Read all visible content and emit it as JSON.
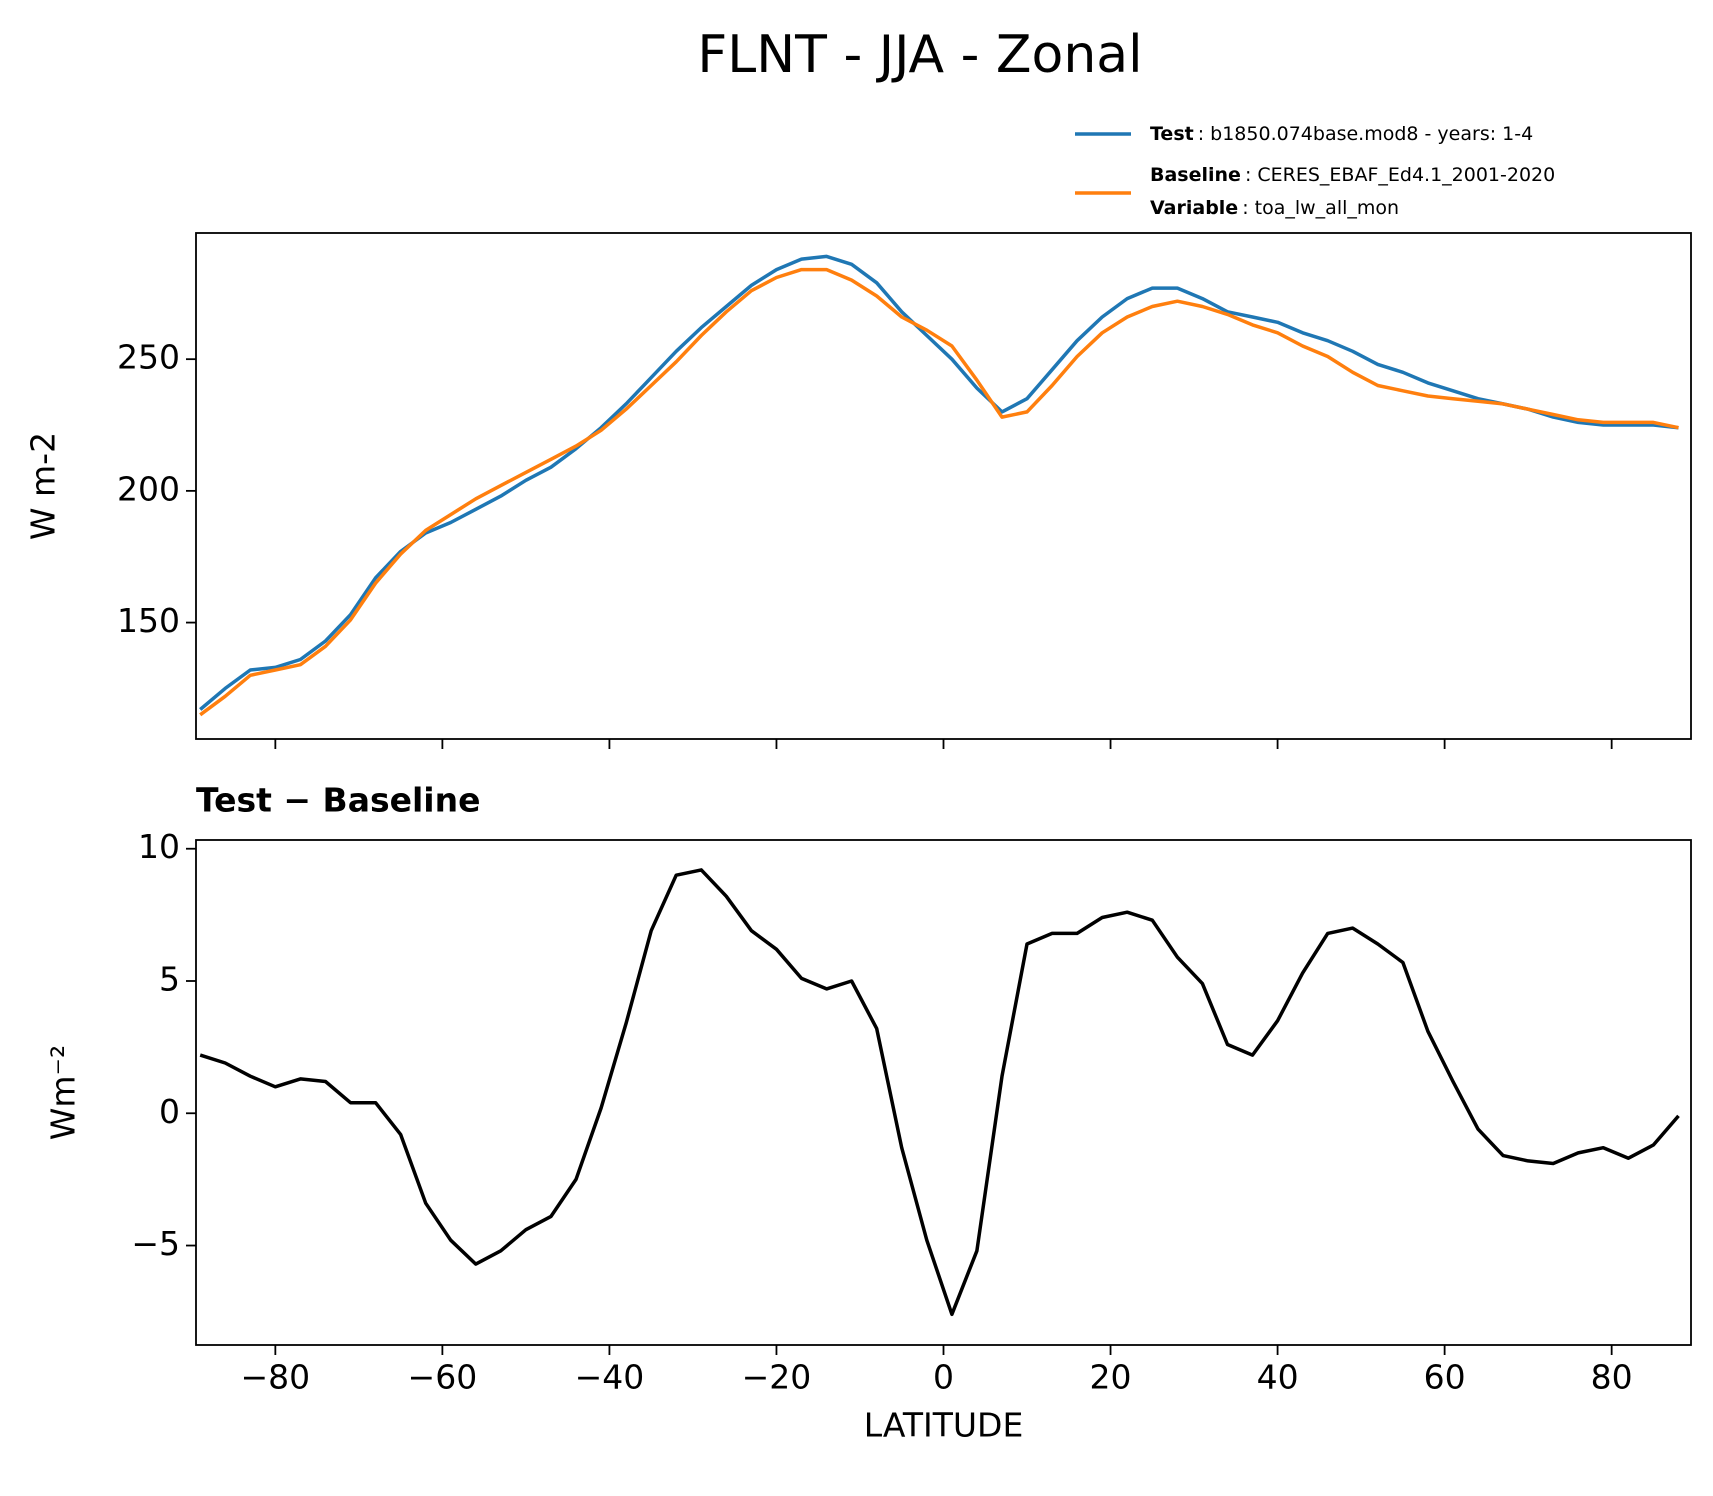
{
  "title": "FLNT - JJA - Zonal",
  "chart_data": [
    {
      "type": "line",
      "ylabel": "W m-2",
      "x": [
        -89,
        -86,
        -83,
        -80,
        -77,
        -74,
        -71,
        -68,
        -65,
        -62,
        -59,
        -56,
        -53,
        -50,
        -47,
        -44,
        -41,
        -38,
        -35,
        -32,
        -29,
        -26,
        -23,
        -20,
        -17,
        -14,
        -11,
        -8,
        -5,
        -2,
        1,
        4,
        7,
        10,
        13,
        16,
        19,
        22,
        25,
        28,
        31,
        34,
        37,
        40,
        43,
        46,
        49,
        52,
        55,
        58,
        61,
        64,
        67,
        70,
        73,
        76,
        79,
        82,
        85,
        88
      ],
      "series": [
        {
          "name": "Test",
          "label": ": b1850.074base.mod8 - years: 1-4",
          "color": "#1f77b4",
          "values": [
            117,
            125,
            132,
            133,
            136,
            143,
            153,
            167,
            177,
            184,
            188,
            193,
            198,
            204,
            209,
            216,
            224,
            233,
            243,
            253,
            262,
            270,
            278,
            284,
            288,
            289,
            286,
            279,
            268,
            259,
            250,
            239,
            230,
            235,
            246,
            257,
            266,
            273,
            277,
            277,
            273,
            268,
            266,
            264,
            260,
            257,
            253,
            248,
            245,
            241,
            238,
            235,
            233,
            231,
            228,
            226,
            225,
            225,
            225,
            224
          ]
        },
        {
          "name": "Baseline",
          "label": ": CERES_EBAF_Ed4.1_2001-2020",
          "color": "#ff7f0e",
          "values": [
            115,
            122,
            130,
            132,
            134,
            141,
            151,
            165,
            176,
            185,
            191,
            197,
            202,
            207,
            212,
            217,
            223,
            231,
            240,
            249,
            259,
            268,
            276,
            281,
            284,
            284,
            280,
            274,
            266,
            261,
            255,
            242,
            228,
            230,
            240,
            251,
            260,
            266,
            270,
            272,
            270,
            267,
            263,
            260,
            255,
            251,
            245,
            240,
            238,
            236,
            235,
            234,
            233,
            231,
            229,
            227,
            226,
            226,
            226,
            224
          ]
        }
      ],
      "legend_extra": [
        {
          "name": "Variable",
          "label": ": toa_lw_all_mon"
        }
      ],
      "xlim": [
        -89.5,
        89.5
      ],
      "xticks": [
        -80,
        -60,
        -40,
        -20,
        0,
        20,
        40,
        60,
        80
      ],
      "ylim": [
        105.8,
        297.9
      ],
      "yticks": [
        150,
        200,
        250
      ]
    },
    {
      "type": "line",
      "title": "Test − Baseline",
      "ylabel": "Wm⁻²",
      "xlabel": "LATITUDE",
      "color": "#000000",
      "x": [
        -89,
        -86,
        -83,
        -80,
        -77,
        -74,
        -71,
        -68,
        -65,
        -62,
        -59,
        -56,
        -53,
        -50,
        -47,
        -44,
        -41,
        -38,
        -35,
        -32,
        -29,
        -26,
        -23,
        -20,
        -17,
        -14,
        -11,
        -8,
        -5,
        -2,
        1,
        4,
        7,
        10,
        13,
        16,
        19,
        22,
        25,
        28,
        31,
        34,
        37,
        40,
        43,
        46,
        49,
        52,
        55,
        58,
        61,
        64,
        67,
        70,
        73,
        76,
        79,
        82,
        85,
        88
      ],
      "values": [
        2.2,
        1.9,
        1.4,
        1.0,
        1.3,
        1.2,
        0.4,
        0.4,
        -0.8,
        -3.4,
        -4.8,
        -5.7,
        -5.2,
        -4.4,
        -3.9,
        -2.5,
        0.2,
        3.4,
        6.9,
        9.0,
        9.2,
        8.2,
        6.9,
        6.2,
        5.1,
        4.7,
        5.0,
        3.2,
        -1.3,
        -4.8,
        -7.6,
        -5.2,
        1.4,
        6.4,
        6.8,
        6.8,
        7.4,
        7.6,
        7.3,
        5.9,
        4.9,
        2.6,
        2.2,
        3.5,
        5.3,
        6.8,
        7.0,
        6.4,
        5.7,
        3.1,
        1.2,
        -0.6,
        -1.6,
        -1.8,
        -1.9,
        -1.5,
        -1.3,
        -1.7,
        -1.2,
        -0.1
      ],
      "xlim": [
        -89.5,
        89.5
      ],
      "xticks": [
        {
          "value": -80,
          "label": "−80"
        },
        {
          "value": -60,
          "label": "−60"
        },
        {
          "value": -40,
          "label": "−40"
        },
        {
          "value": -20,
          "label": "−20"
        },
        0,
        20,
        40,
        60,
        80
      ],
      "ylim": [
        -8.76,
        10.33
      ],
      "yticks": [
        {
          "value": -5,
          "label": "−5"
        },
        0,
        5,
        10
      ]
    }
  ]
}
